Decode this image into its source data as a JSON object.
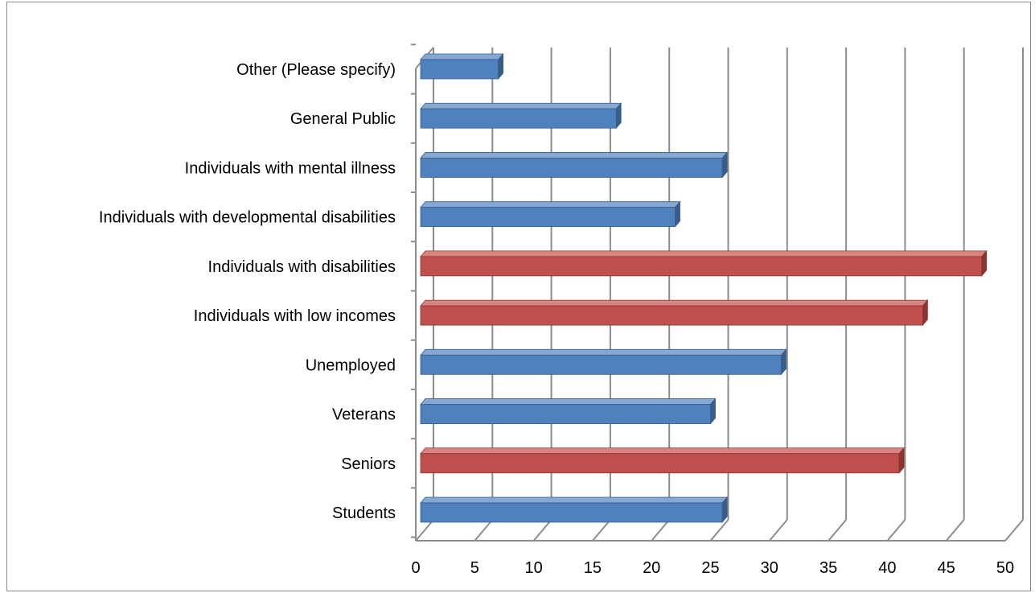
{
  "chart_data": {
    "type": "bar",
    "orientation": "horizontal",
    "style": "3d-clustered",
    "categories": [
      "Students",
      "Seniors",
      "Veterans",
      "Unemployed",
      "Individuals with low incomes",
      "Individuals with disabilities",
      "Individuals with developmental disabilities",
      "Individuals with mental illness",
      "General Public",
      "Other (Please specify)"
    ],
    "values": [
      26,
      41,
      25,
      31,
      43,
      48,
      22,
      26,
      17,
      7
    ],
    "highlight": [
      false,
      true,
      false,
      false,
      true,
      true,
      false,
      false,
      false,
      false
    ],
    "colors": {
      "normal": "#4f81bd",
      "highlight": "#c0504d",
      "grid": "#8c8c8c"
    },
    "xlim": [
      0,
      50
    ],
    "ticks": [
      "0",
      "5",
      "10",
      "15",
      "20",
      "25",
      "30",
      "35",
      "40",
      "45",
      "50"
    ],
    "grid": true,
    "legend": "none",
    "title": "",
    "xlabel": "",
    "ylabel": ""
  }
}
